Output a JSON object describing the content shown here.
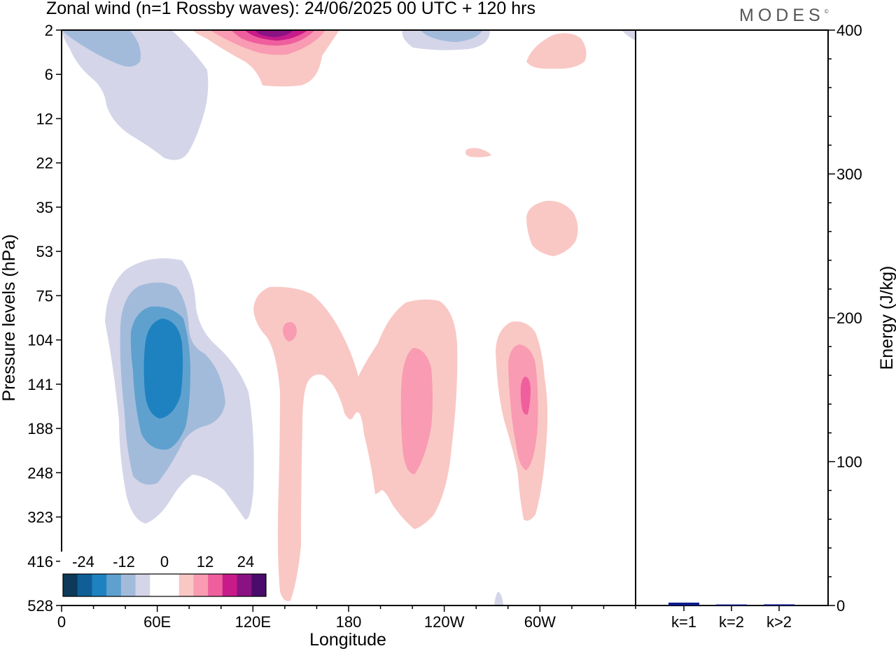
{
  "header": {
    "title": "Zonal wind (n=1 Rossby waves):  24/06/2025  00 UTC  + 120 hrs",
    "logo": "MODES",
    "logo_mark": "©"
  },
  "chart_data": [
    {
      "type": "heatmap",
      "xlabel": "Longitude",
      "ylabel": "Pressure levels (hPa)",
      "x_ticks": [
        "0",
        "60E",
        "120E",
        "180",
        "120W",
        "60W"
      ],
      "x_tick_values": [
        0,
        60,
        120,
        180,
        240,
        300
      ],
      "xlim": [
        0,
        360
      ],
      "y_ticks": [
        "2",
        "6",
        "12",
        "22",
        "35",
        "53",
        "75",
        "104",
        "141",
        "188",
        "248",
        "323",
        "416",
        "528"
      ],
      "colorbar": {
        "labels": [
          "-24",
          "-12",
          "0",
          "12",
          "24"
        ],
        "label_values": [
          -24,
          -12,
          0,
          12,
          24
        ],
        "range": [
          -30,
          30
        ],
        "colors": [
          "#0d3a58",
          "#0f5f96",
          "#1f82c0",
          "#5ea1cf",
          "#a3bbdb",
          "#d4d5e8",
          "#ffffff",
          "#ffffff",
          "#f9c8c4",
          "#f99bb2",
          "#ef5f9e",
          "#c81b8a",
          "#8b1283",
          "#4a0c6b"
        ]
      },
      "features": [
        {
          "name": "negative maximum",
          "lon": 55,
          "pressure": 141,
          "value": -18
        },
        {
          "name": "positive maximum",
          "lon": 290,
          "pressure": 141,
          "value": 12
        },
        {
          "name": "positive maximum",
          "lon": 225,
          "pressure": 141,
          "value": 9
        },
        {
          "name": "upper positive maximum",
          "lon": 130,
          "pressure": 2,
          "value": 18
        }
      ]
    },
    {
      "type": "bar",
      "ylabel": "Energy (J/kg)",
      "categories": [
        "k=1",
        "k=2",
        "k>2"
      ],
      "values": [
        2,
        0.5,
        0.8
      ],
      "ylim": [
        0,
        400
      ],
      "y_ticks": [
        0,
        100,
        200,
        300,
        400
      ],
      "bar_color": "#0a1a8a"
    }
  ]
}
